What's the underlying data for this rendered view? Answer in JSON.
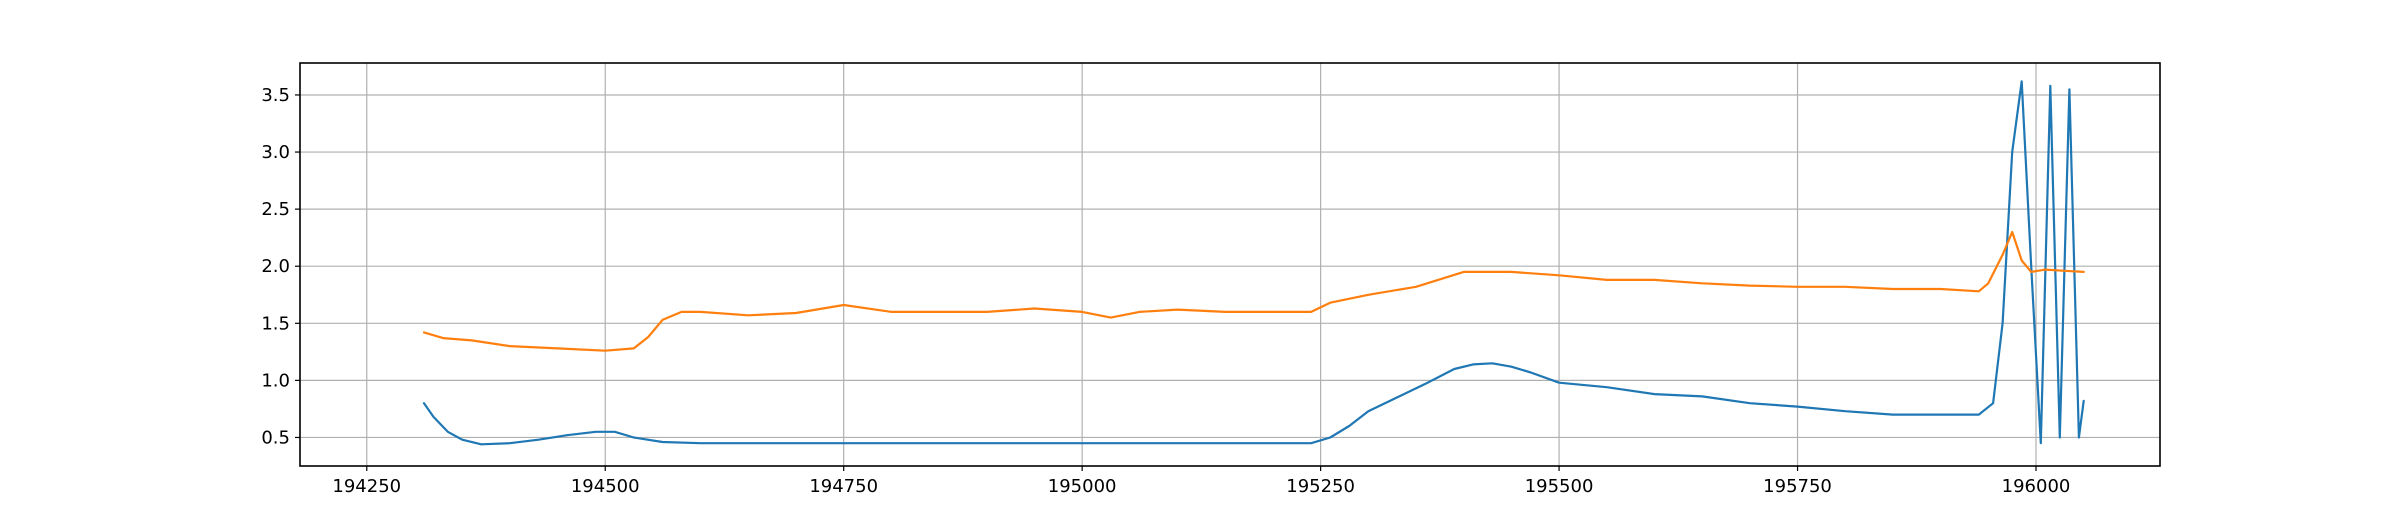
{
  "chart_data": {
    "type": "line",
    "title": "",
    "xlabel": "",
    "ylabel": "",
    "xlim": [
      194180,
      196130
    ],
    "ylim": [
      0.25,
      3.78
    ],
    "xticks": [
      194250,
      194500,
      194750,
      195000,
      195250,
      195500,
      195750,
      196000
    ],
    "yticks": [
      0.5,
      1.0,
      1.5,
      2.0,
      2.5,
      3.0,
      3.5
    ],
    "xtick_labels": [
      "194250",
      "194500",
      "194750",
      "195000",
      "195250",
      "195500",
      "195750",
      "196000"
    ],
    "ytick_labels": [
      "0.5",
      "1.0",
      "1.5",
      "2.0",
      "2.5",
      "3.0",
      "3.5"
    ],
    "grid": true,
    "legend": "none",
    "series": [
      {
        "color": "#1f77b4",
        "x": [
          194310,
          194320,
          194335,
          194350,
          194370,
          194400,
          194430,
          194460,
          194490,
          194510,
          194530,
          194560,
          194600,
          194700,
          194800,
          194900,
          195000,
          195100,
          195200,
          195240,
          195260,
          195280,
          195300,
          195330,
          195360,
          195390,
          195410,
          195430,
          195450,
          195470,
          195500,
          195550,
          195600,
          195650,
          195700,
          195750,
          195800,
          195850,
          195900,
          195940,
          195955,
          195965,
          195975,
          195985,
          195995,
          196005,
          196015,
          196025,
          196035,
          196045,
          196050
        ],
        "y": [
          0.8,
          0.68,
          0.55,
          0.48,
          0.44,
          0.45,
          0.48,
          0.52,
          0.55,
          0.55,
          0.5,
          0.46,
          0.45,
          0.45,
          0.45,
          0.45,
          0.45,
          0.45,
          0.45,
          0.45,
          0.5,
          0.6,
          0.73,
          0.85,
          0.97,
          1.1,
          1.14,
          1.15,
          1.12,
          1.07,
          0.98,
          0.94,
          0.88,
          0.86,
          0.8,
          0.77,
          0.73,
          0.7,
          0.7,
          0.7,
          0.8,
          1.5,
          3.0,
          3.62,
          2.0,
          0.45,
          3.58,
          0.5,
          3.55,
          0.5,
          0.82
        ]
      },
      {
        "color": "#ff7f0e",
        "x": [
          194310,
          194330,
          194360,
          194400,
          194450,
          194500,
          194530,
          194545,
          194560,
          194580,
          194600,
          194650,
          194700,
          194750,
          194800,
          194850,
          194900,
          194950,
          195000,
          195030,
          195060,
          195100,
          195150,
          195200,
          195240,
          195260,
          195300,
          195350,
          195400,
          195450,
          195500,
          195550,
          195600,
          195650,
          195700,
          195750,
          195800,
          195850,
          195900,
          195940,
          195950,
          195965,
          195975,
          195985,
          195995,
          196010,
          196030,
          196050
        ],
        "y": [
          1.42,
          1.37,
          1.35,
          1.3,
          1.28,
          1.26,
          1.28,
          1.38,
          1.53,
          1.6,
          1.6,
          1.57,
          1.59,
          1.66,
          1.6,
          1.6,
          1.6,
          1.63,
          1.6,
          1.55,
          1.6,
          1.62,
          1.6,
          1.6,
          1.6,
          1.68,
          1.75,
          1.82,
          1.95,
          1.95,
          1.92,
          1.88,
          1.88,
          1.85,
          1.83,
          1.82,
          1.82,
          1.8,
          1.8,
          1.78,
          1.85,
          2.1,
          2.3,
          2.05,
          1.95,
          1.97,
          1.96,
          1.95
        ]
      }
    ]
  }
}
